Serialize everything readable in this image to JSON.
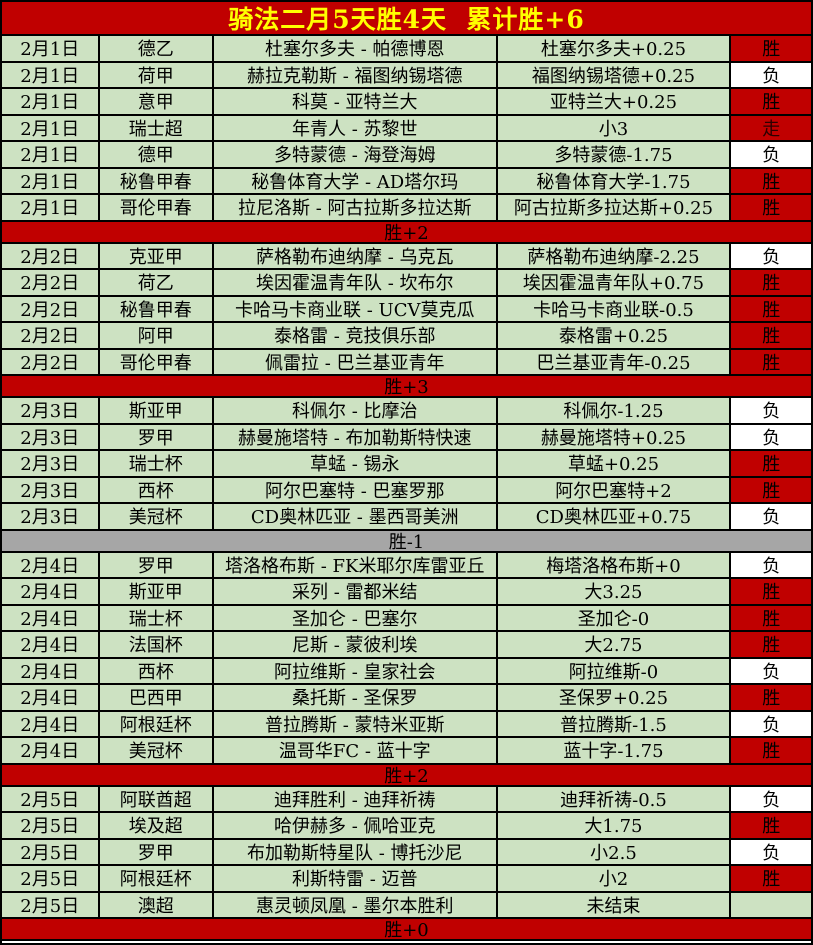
{
  "title": "骑法二月5天胜4天  累计胜+6",
  "colors": {
    "title_bg": "#c00000",
    "title_text": "#ffff00",
    "row_bg": "#cde2c2",
    "win_bg": "#c00000",
    "loss_bg": "#ffffff",
    "push_bg": "#c00000",
    "summary_red_bg": "#c00000",
    "summary_gray_bg": "#a6a6a6",
    "grid_line": "#000000"
  },
  "blocks": [
    {
      "rows": [
        {
          "date": "2月1日",
          "league": "德乙",
          "match": "杜塞尔多夫 - 帕德博恩",
          "pick": "杜塞尔多夫+0.25",
          "result": "胜",
          "result_type": "win"
        },
        {
          "date": "2月1日",
          "league": "荷甲",
          "match": "赫拉克勒斯 - 福图纳锡塔德",
          "pick": "福图纳锡塔德+0.25",
          "result": "负",
          "result_type": "loss"
        },
        {
          "date": "2月1日",
          "league": "意甲",
          "match": "科莫 - 亚特兰大",
          "pick": "亚特兰大+0.25",
          "result": "胜",
          "result_type": "win"
        },
        {
          "date": "2月1日",
          "league": "瑞士超",
          "match": "年青人 - 苏黎世",
          "pick": "小3",
          "result": "走",
          "result_type": "push"
        },
        {
          "date": "2月1日",
          "league": "德甲",
          "match": "多特蒙德 - 海登海姆",
          "pick": "多特蒙德-1.75",
          "result": "负",
          "result_type": "loss"
        },
        {
          "date": "2月1日",
          "league": "秘鲁甲春",
          "match": "秘鲁体育大学 - AD塔尔玛",
          "pick": "秘鲁体育大学-1.75",
          "result": "胜",
          "result_type": "win"
        },
        {
          "date": "2月1日",
          "league": "哥伦甲春",
          "match": "拉尼洛斯 - 阿古拉斯多拉达斯",
          "pick": "阿古拉斯多拉达斯+0.25",
          "result": "胜",
          "result_type": "win"
        }
      ],
      "summary": "胜+2",
      "summary_style": "red"
    },
    {
      "rows": [
        {
          "date": "2月2日",
          "league": "克亚甲",
          "match": "萨格勒布迪纳摩 - 乌克瓦",
          "pick": "萨格勒布迪纳摩-2.25",
          "result": "负",
          "result_type": "loss"
        },
        {
          "date": "2月2日",
          "league": "荷乙",
          "match": "埃因霍温青年队 - 坎布尔",
          "pick": "埃因霍温青年队+0.75",
          "result": "胜",
          "result_type": "win"
        },
        {
          "date": "2月2日",
          "league": "秘鲁甲春",
          "match": "卡哈马卡商业联 - UCV莫克瓜",
          "pick": "卡哈马卡商业联-0.5",
          "result": "胜",
          "result_type": "win"
        },
        {
          "date": "2月2日",
          "league": "阿甲",
          "match": "泰格雷 - 竞技俱乐部",
          "pick": "泰格雷+0.25",
          "result": "胜",
          "result_type": "win"
        },
        {
          "date": "2月2日",
          "league": "哥伦甲春",
          "match": "佩雷拉 - 巴兰基亚青年",
          "pick": "巴兰基亚青年-0.25",
          "result": "胜",
          "result_type": "win"
        }
      ],
      "summary": "胜+3",
      "summary_style": "red"
    },
    {
      "rows": [
        {
          "date": "2月3日",
          "league": "斯亚甲",
          "match": "科佩尔 - 比摩治",
          "pick": "科佩尔-1.25",
          "result": "负",
          "result_type": "loss"
        },
        {
          "date": "2月3日",
          "league": "罗甲",
          "match": "赫曼施塔特 - 布加勒斯特快速",
          "pick": "赫曼施塔特+0.25",
          "result": "负",
          "result_type": "loss"
        },
        {
          "date": "2月3日",
          "league": "瑞士杯",
          "match": "草蜢 - 锡永",
          "pick": "草蜢+0.25",
          "result": "胜",
          "result_type": "win"
        },
        {
          "date": "2月3日",
          "league": "西杯",
          "match": "阿尔巴塞特 - 巴塞罗那",
          "pick": "阿尔巴塞特+2",
          "result": "胜",
          "result_type": "win"
        },
        {
          "date": "2月3日",
          "league": "美冠杯",
          "match": "CD奥林匹亚 - 墨西哥美洲",
          "pick": "CD奥林匹亚+0.75",
          "result": "负",
          "result_type": "loss"
        }
      ],
      "summary": "胜-1",
      "summary_style": "gray"
    },
    {
      "rows": [
        {
          "date": "2月4日",
          "league": "罗甲",
          "match": "塔洛格布斯 - FK米耶尔库雷亚丘",
          "pick": "梅塔洛格布斯+0",
          "result": "负",
          "result_type": "loss"
        },
        {
          "date": "2月4日",
          "league": "斯亚甲",
          "match": "采列 - 雷都米结",
          "pick": "大3.25",
          "result": "胜",
          "result_type": "win"
        },
        {
          "date": "2月4日",
          "league": "瑞士杯",
          "match": "圣加仑 - 巴塞尔",
          "pick": "圣加仑-0",
          "result": "胜",
          "result_type": "win"
        },
        {
          "date": "2月4日",
          "league": "法国杯",
          "match": "尼斯 - 蒙彼利埃",
          "pick": "大2.75",
          "result": "胜",
          "result_type": "win"
        },
        {
          "date": "2月4日",
          "league": "西杯",
          "match": "阿拉维斯 - 皇家社会",
          "pick": "阿拉维斯-0",
          "result": "负",
          "result_type": "loss"
        },
        {
          "date": "2月4日",
          "league": "巴西甲",
          "match": "桑托斯 - 圣保罗",
          "pick": "圣保罗+0.25",
          "result": "胜",
          "result_type": "win"
        },
        {
          "date": "2月4日",
          "league": "阿根廷杯",
          "match": "普拉腾斯 - 蒙特米亚斯",
          "pick": "普拉腾斯-1.5",
          "result": "负",
          "result_type": "loss"
        },
        {
          "date": "2月4日",
          "league": "美冠杯",
          "match": "温哥华FC - 蓝十字",
          "pick": "蓝十字-1.75",
          "result": "胜",
          "result_type": "win"
        }
      ],
      "summary": "胜+2",
      "summary_style": "red"
    },
    {
      "rows": [
        {
          "date": "2月5日",
          "league": "阿联酋超",
          "match": "迪拜胜利 - 迪拜祈祷",
          "pick": "迪拜祈祷-0.5",
          "result": "负",
          "result_type": "loss"
        },
        {
          "date": "2月5日",
          "league": "埃及超",
          "match": "哈伊赫多 - 佩哈亚克",
          "pick": "大1.75",
          "result": "胜",
          "result_type": "win"
        },
        {
          "date": "2月5日",
          "league": "罗甲",
          "match": "布加勒斯特星队 - 博托沙尼",
          "pick": "小2.5",
          "result": "负",
          "result_type": "loss"
        },
        {
          "date": "2月5日",
          "league": "阿根廷杯",
          "match": "利斯特雷 - 迈普",
          "pick": "小2",
          "result": "胜",
          "result_type": "win"
        },
        {
          "date": "2月5日",
          "league": "澳超",
          "match": "惠灵顿凤凰 - 墨尔本胜利",
          "pick": "未结束",
          "result": "",
          "result_type": "pending"
        }
      ],
      "summary": "胜+0",
      "summary_style": "red"
    }
  ]
}
